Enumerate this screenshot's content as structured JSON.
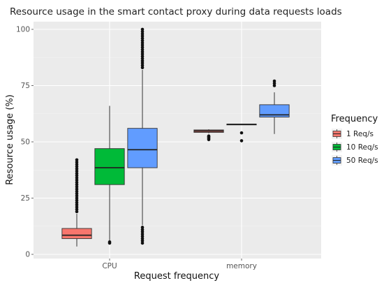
{
  "chart_data": {
    "type": "box",
    "title": "Resource usage in the smart contact proxy during data requests loads",
    "xlabel": "Request frequency",
    "ylabel": "Resource usage (%)",
    "ylim": [
      0,
      100
    ],
    "yticks": [
      0,
      25,
      50,
      75,
      100
    ],
    "categories": [
      "CPU",
      "memory"
    ],
    "grid": true,
    "legend": {
      "title": "Frequency",
      "position": "right"
    },
    "series": [
      {
        "name": "1 Req/s",
        "color": "#F8766D",
        "boxes": [
          {
            "category": "CPU",
            "min": 3.5,
            "q1": 7,
            "median": 8.5,
            "q3": 11.5,
            "max": 18,
            "outliers": [
              19,
              20,
              21,
              22,
              23,
              24,
              25,
              26,
              27,
              28,
              29,
              30,
              31,
              32,
              33,
              34,
              35,
              36,
              37,
              38,
              39,
              40,
              41,
              42
            ]
          },
          {
            "category": "memory",
            "min": 53.8,
            "q1": 54.2,
            "median": 54.8,
            "q3": 55.3,
            "max": 55.6,
            "outliers": [
              51,
              51.5,
              52,
              52.3,
              52.6
            ]
          }
        ]
      },
      {
        "name": "10 Req/s",
        "color": "#00BA38",
        "boxes": [
          {
            "category": "CPU",
            "min": 6,
            "q1": 31,
            "median": 38.5,
            "q3": 47,
            "max": 66,
            "outliers": [
              5,
              5.5
            ]
          },
          {
            "category": "memory",
            "min": 57.6,
            "q1": 57.7,
            "median": 57.8,
            "q3": 57.9,
            "max": 58,
            "outliers": [
              54,
              50.5
            ]
          }
        ]
      },
      {
        "name": "50 Req/s",
        "color": "#619CFF",
        "boxes": [
          {
            "category": "CPU",
            "min": 13,
            "q1": 38.5,
            "median": 46.5,
            "q3": 56,
            "max": 82,
            "outliers": [
              5,
              6,
              7,
              8,
              9,
              10,
              11,
              12,
              83,
              84,
              85,
              86,
              87,
              88,
              89,
              90,
              91,
              92,
              93,
              94,
              95,
              96,
              97,
              98,
              99,
              100
            ]
          },
          {
            "category": "memory",
            "min": 53.5,
            "q1": 61,
            "median": 62,
            "q3": 66.5,
            "max": 72,
            "outliers": [
              75,
              76,
              77
            ]
          }
        ]
      }
    ]
  }
}
